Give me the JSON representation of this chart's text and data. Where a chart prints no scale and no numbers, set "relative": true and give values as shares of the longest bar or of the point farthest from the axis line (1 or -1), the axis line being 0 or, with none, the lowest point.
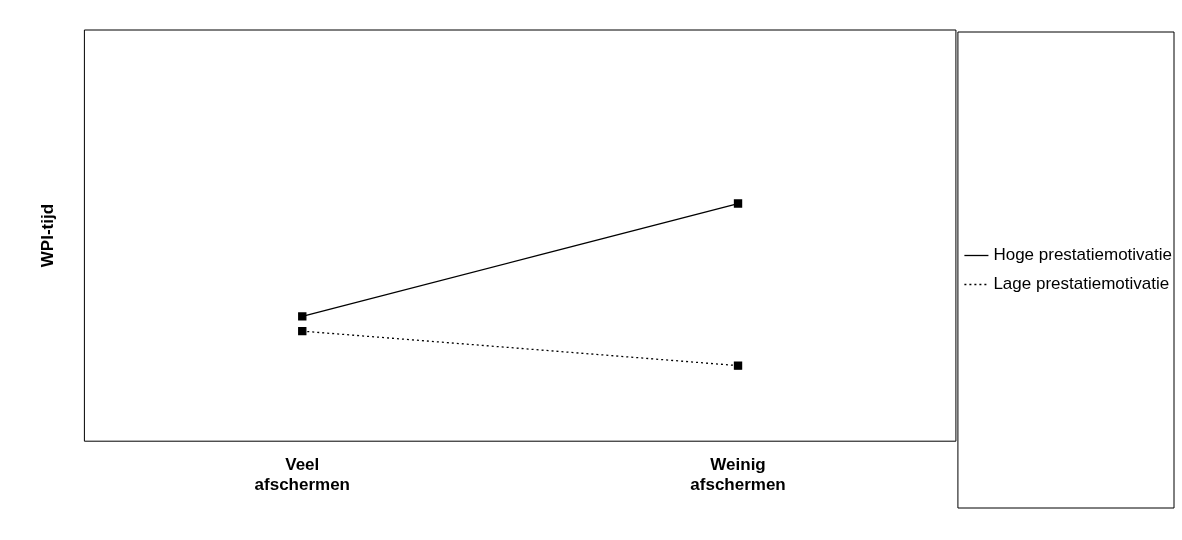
{
  "chart_data": {
    "type": "line",
    "relative": true,
    "ylabel": "WPI-tijd",
    "categories": [
      "Veel afschermen",
      "Weinig afschermen"
    ],
    "series": [
      {
        "name": "Hoge prestatiemotivatie",
        "color": "#000000",
        "values": [
          0.525,
          1
        ],
        "line_style": "solid"
      },
      {
        "name": "Lage prestatiemotivatie",
        "color": "#000000",
        "values": [
          0.463,
          0.318
        ],
        "line_style": "dotted"
      }
    ],
    "marker": "square",
    "grid": false,
    "legend": "right"
  }
}
